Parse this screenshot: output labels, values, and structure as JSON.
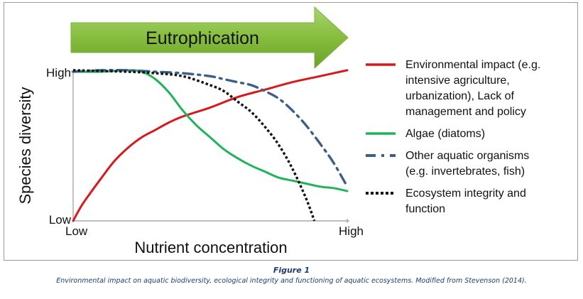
{
  "chart_data": {
    "type": "line",
    "banner": "Eutrophication",
    "xlabel": "Nutrient concentration",
    "ylabel": "Species diversity",
    "x_ticks": [
      "Low",
      "High"
    ],
    "y_ticks": [
      "Low",
      "High"
    ],
    "xlim": [
      0,
      100
    ],
    "ylim": [
      0,
      100
    ],
    "grid": false,
    "legend_position": "right",
    "series": [
      {
        "name": "Environmental impact (e.g. intensive agriculture, urbanization), Lack of management and policy",
        "legend_lines": [
          "Environmental impact (e.g.",
          "intensive agriculture,",
          "urbanization), Lack of",
          "management and policy"
        ],
        "color": "#d7191c",
        "style": "solid",
        "points": [
          [
            0,
            0
          ],
          [
            3,
            10
          ],
          [
            6,
            18
          ],
          [
            10,
            28
          ],
          [
            15,
            40
          ],
          [
            20,
            49
          ],
          [
            25,
            56
          ],
          [
            30,
            61
          ],
          [
            35,
            66
          ],
          [
            40,
            70
          ],
          [
            50,
            76
          ],
          [
            60,
            83
          ],
          [
            70,
            88
          ],
          [
            80,
            93
          ],
          [
            90,
            97
          ],
          [
            100,
            101
          ]
        ]
      },
      {
        "name": "Algae (diatoms)",
        "legend_lines": [
          "Algae (diatoms)"
        ],
        "color": "#1fb45a",
        "style": "solid",
        "points": [
          [
            0,
            100
          ],
          [
            10,
            100
          ],
          [
            20,
            101
          ],
          [
            25,
            100
          ],
          [
            30,
            95
          ],
          [
            35,
            86
          ],
          [
            40,
            74
          ],
          [
            45,
            64
          ],
          [
            50,
            56
          ],
          [
            55,
            48
          ],
          [
            60,
            42
          ],
          [
            65,
            37
          ],
          [
            70,
            33
          ],
          [
            75,
            29
          ],
          [
            80,
            27
          ],
          [
            85,
            25
          ],
          [
            90,
            23
          ],
          [
            95,
            22
          ],
          [
            100,
            20
          ]
        ]
      },
      {
        "name": "Other aquatic organisms (e.g. invertebrates, fish)",
        "legend_lines": [
          "Other aquatic organisms",
          "(e.g. invertebrates, fish)"
        ],
        "color": "#3c5f8a",
        "style": "dashdot",
        "points": [
          [
            0,
            100
          ],
          [
            10,
            101
          ],
          [
            20,
            101
          ],
          [
            30,
            100
          ],
          [
            40,
            99
          ],
          [
            50,
            97
          ],
          [
            55,
            95
          ],
          [
            60,
            93
          ],
          [
            65,
            91
          ],
          [
            70,
            87
          ],
          [
            75,
            82
          ],
          [
            80,
            74
          ],
          [
            85,
            64
          ],
          [
            90,
            52
          ],
          [
            95,
            39
          ],
          [
            100,
            23
          ]
        ]
      },
      {
        "name": "Ecosystem integrity and function",
        "legend_lines": [
          "Ecosystem integrity and",
          "function"
        ],
        "color": "#111111",
        "style": "dotted",
        "points": [
          [
            0,
            101
          ],
          [
            20,
            100
          ],
          [
            30,
            99
          ],
          [
            40,
            97
          ],
          [
            50,
            91
          ],
          [
            55,
            87
          ],
          [
            60,
            80
          ],
          [
            65,
            73
          ],
          [
            70,
            63
          ],
          [
            75,
            51
          ],
          [
            80,
            35
          ],
          [
            85,
            15
          ],
          [
            88,
            0
          ]
        ]
      }
    ]
  },
  "caption": {
    "title": "Figure 1",
    "text": "Environmental impact on aquatic biodiversity, ecological integrity and functioning of aquatic ecosystems. Modified from Stevenson (2014)."
  }
}
